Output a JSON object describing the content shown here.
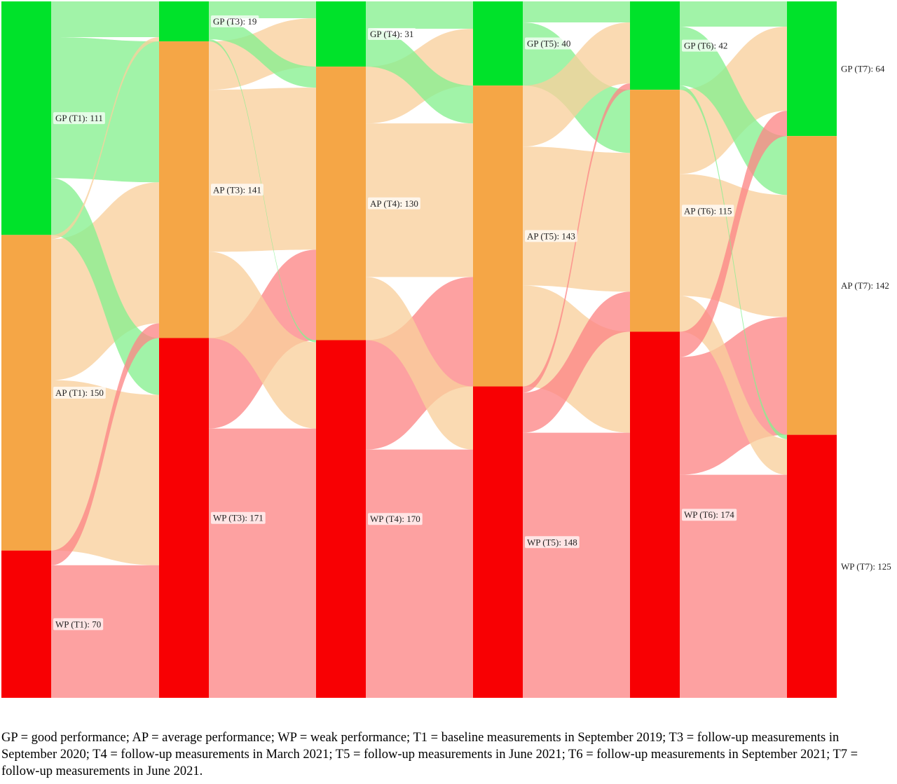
{
  "chart_data": {
    "type": "sankey",
    "stages": [
      "T1",
      "T3",
      "T4",
      "T5",
      "T6",
      "T7"
    ],
    "categories": [
      "GP",
      "AP",
      "WP"
    ],
    "colors": {
      "GP": "#00e22a",
      "AP": "#f5a646",
      "WP": "#f80003",
      "GP_link": "#86f08f",
      "AP_link": "#f9cf9c",
      "WP_link": "#fc8787"
    },
    "nodes": [
      {
        "id": "GP_T1",
        "label": "GP (T1): 111",
        "stage": 0,
        "category": "GP",
        "value": 111
      },
      {
        "id": "AP_T1",
        "label": "AP (T1): 150",
        "stage": 0,
        "category": "AP",
        "value": 150
      },
      {
        "id": "WP_T1",
        "label": "WP (T1): 70",
        "stage": 0,
        "category": "WP",
        "value": 70
      },
      {
        "id": "GP_T3",
        "label": "GP (T3): 19",
        "stage": 1,
        "category": "GP",
        "value": 19
      },
      {
        "id": "AP_T3",
        "label": "AP (T3): 141",
        "stage": 1,
        "category": "AP",
        "value": 141
      },
      {
        "id": "WP_T3",
        "label": "WP (T3): 171",
        "stage": 1,
        "category": "WP",
        "value": 171
      },
      {
        "id": "GP_T4",
        "label": "GP (T4): 31",
        "stage": 2,
        "category": "GP",
        "value": 31
      },
      {
        "id": "AP_T4",
        "label": "AP (T4): 130",
        "stage": 2,
        "category": "AP",
        "value": 130
      },
      {
        "id": "WP_T4",
        "label": "WP (T4): 170",
        "stage": 2,
        "category": "WP",
        "value": 170
      },
      {
        "id": "GP_T5",
        "label": "GP (T5): 40",
        "stage": 3,
        "category": "GP",
        "value": 40
      },
      {
        "id": "AP_T5",
        "label": "AP (T5): 143",
        "stage": 3,
        "category": "AP",
        "value": 143
      },
      {
        "id": "WP_T5",
        "label": "WP (T5): 148",
        "stage": 3,
        "category": "WP",
        "value": 148
      },
      {
        "id": "GP_T6",
        "label": "GP (T6): 42",
        "stage": 4,
        "category": "GP",
        "value": 42
      },
      {
        "id": "AP_T6",
        "label": "AP (T6): 115",
        "stage": 4,
        "category": "AP",
        "value": 115
      },
      {
        "id": "WP_T6",
        "label": "WP (T6): 174",
        "stage": 4,
        "category": "WP",
        "value": 174
      },
      {
        "id": "GP_T7",
        "label": "GP (T7): 64",
        "stage": 5,
        "category": "GP",
        "value": 64
      },
      {
        "id": "AP_T7",
        "label": "AP (T7): 142",
        "stage": 5,
        "category": "AP",
        "value": 142
      },
      {
        "id": "WP_T7",
        "label": "WP (T7): 125",
        "stage": 5,
        "category": "WP",
        "value": 125
      }
    ],
    "links": [
      {
        "source": "GP_T1",
        "target": "GP_T3",
        "value": 17
      },
      {
        "source": "GP_T1",
        "target": "AP_T3",
        "value": 67
      },
      {
        "source": "GP_T1",
        "target": "WP_T3",
        "value": 27
      },
      {
        "source": "AP_T1",
        "target": "GP_T3",
        "value": 2
      },
      {
        "source": "AP_T1",
        "target": "AP_T3",
        "value": 67
      },
      {
        "source": "AP_T1",
        "target": "WP_T3",
        "value": 81
      },
      {
        "source": "WP_T1",
        "target": "AP_T3",
        "value": 7
      },
      {
        "source": "WP_T1",
        "target": "WP_T3",
        "value": 63
      },
      {
        "source": "GP_T3",
        "target": "GP_T4",
        "value": 8
      },
      {
        "source": "GP_T3",
        "target": "AP_T4",
        "value": 10
      },
      {
        "source": "GP_T3",
        "target": "WP_T4",
        "value": 1
      },
      {
        "source": "AP_T3",
        "target": "GP_T4",
        "value": 23
      },
      {
        "source": "AP_T3",
        "target": "AP_T4",
        "value": 77
      },
      {
        "source": "AP_T3",
        "target": "WP_T4",
        "value": 41
      },
      {
        "source": "WP_T3",
        "target": "AP_T4",
        "value": 43
      },
      {
        "source": "WP_T3",
        "target": "WP_T4",
        "value": 128
      },
      {
        "source": "GP_T4",
        "target": "GP_T5",
        "value": 13
      },
      {
        "source": "GP_T4",
        "target": "AP_T5",
        "value": 18
      },
      {
        "source": "AP_T4",
        "target": "GP_T5",
        "value": 27
      },
      {
        "source": "AP_T4",
        "target": "AP_T5",
        "value": 73
      },
      {
        "source": "AP_T4",
        "target": "WP_T5",
        "value": 30
      },
      {
        "source": "WP_T4",
        "target": "AP_T5",
        "value": 52
      },
      {
        "source": "WP_T4",
        "target": "WP_T5",
        "value": 118
      },
      {
        "source": "GP_T5",
        "target": "GP_T6",
        "value": 10
      },
      {
        "source": "GP_T5",
        "target": "AP_T6",
        "value": 30
      },
      {
        "source": "AP_T5",
        "target": "GP_T6",
        "value": 29
      },
      {
        "source": "AP_T5",
        "target": "AP_T6",
        "value": 66
      },
      {
        "source": "AP_T5",
        "target": "WP_T6",
        "value": 48
      },
      {
        "source": "WP_T5",
        "target": "GP_T6",
        "value": 3
      },
      {
        "source": "WP_T5",
        "target": "AP_T6",
        "value": 19
      },
      {
        "source": "WP_T5",
        "target": "WP_T6",
        "value": 126
      },
      {
        "source": "GP_T6",
        "target": "GP_T7",
        "value": 12
      },
      {
        "source": "GP_T6",
        "target": "AP_T7",
        "value": 28
      },
      {
        "source": "GP_T6",
        "target": "WP_T7",
        "value": 2
      },
      {
        "source": "AP_T6",
        "target": "GP_T7",
        "value": 40
      },
      {
        "source": "AP_T6",
        "target": "AP_T7",
        "value": 58
      },
      {
        "source": "AP_T6",
        "target": "WP_T7",
        "value": 17
      },
      {
        "source": "WP_T6",
        "target": "GP_T7",
        "value": 12
      },
      {
        "source": "WP_T6",
        "target": "AP_T7",
        "value": 56
      },
      {
        "source": "WP_T6",
        "target": "WP_T7",
        "value": 106
      }
    ]
  },
  "caption": "GP = good performance; AP = average performance; WP = weak performance; T1 = baseline measurements in September 2019; T3 = follow-up measurements in September 2020; T4 = follow-up measurements in March 2021; T5 = follow-up measurements in June 2021; T6 = follow-up measurements in September 2021; T7 = follow-up measurements in June 2021."
}
